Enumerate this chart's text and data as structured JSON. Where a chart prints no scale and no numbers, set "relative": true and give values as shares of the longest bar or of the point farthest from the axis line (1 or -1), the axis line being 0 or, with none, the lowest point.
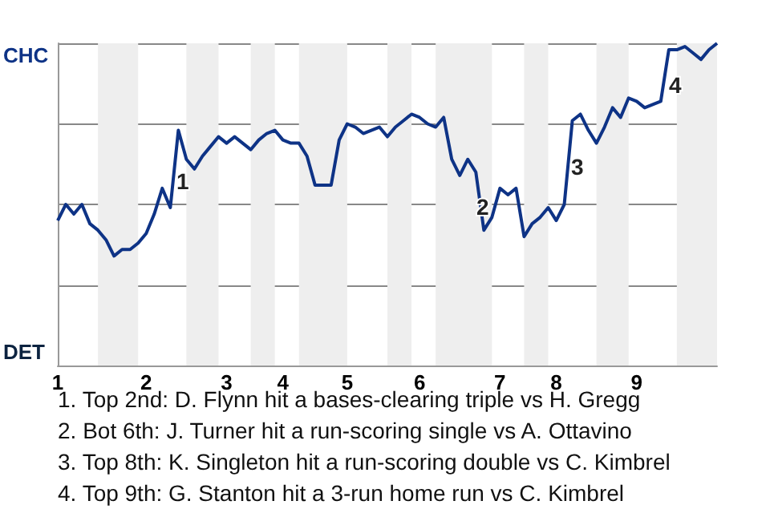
{
  "chart_data": {
    "type": "line",
    "relative": true,
    "categories": [
      "1",
      null,
      null,
      null,
      null,
      null,
      null,
      null,
      null,
      null,
      null,
      "2",
      null,
      null,
      null,
      null,
      null,
      null,
      null,
      null,
      null,
      "3",
      null,
      null,
      null,
      null,
      null,
      null,
      "4",
      null,
      null,
      null,
      null,
      null,
      null,
      null,
      "5",
      null,
      null,
      null,
      null,
      null,
      null,
      null,
      null,
      "6",
      null,
      null,
      null,
      null,
      null,
      null,
      null,
      null,
      null,
      "7",
      null,
      null,
      null,
      null,
      null,
      null,
      "8",
      null,
      null,
      null,
      null,
      null,
      null,
      null,
      null,
      null,
      "9",
      null,
      null,
      null,
      null,
      null,
      null,
      null,
      null,
      null,
      null
    ],
    "series": [
      {
        "color": "#0e3386",
        "values": [
          0.45,
          0.5,
          0.47,
          0.5,
          0.44,
          0.42,
          0.39,
          0.34,
          0.36,
          0.36,
          0.38,
          0.41,
          0.47,
          0.55,
          0.49,
          0.73,
          0.64,
          0.61,
          0.65,
          0.68,
          0.71,
          0.69,
          0.71,
          0.69,
          0.67,
          0.7,
          0.72,
          0.73,
          0.7,
          0.69,
          0.69,
          0.65,
          0.56,
          0.56,
          0.56,
          0.7,
          0.75,
          0.74,
          0.72,
          0.73,
          0.74,
          0.71,
          0.74,
          0.76,
          0.78,
          0.77,
          0.75,
          0.74,
          0.77,
          0.64,
          0.59,
          0.64,
          0.6,
          0.42,
          0.46,
          0.55,
          0.53,
          0.55,
          0.4,
          0.44,
          0.46,
          0.49,
          0.45,
          0.5,
          0.76,
          0.78,
          0.73,
          0.69,
          0.74,
          0.8,
          0.77,
          0.83,
          0.82,
          0.8,
          0.81,
          0.82,
          0.98,
          0.98,
          0.99,
          0.97,
          0.95,
          0.98,
          1
        ]
      }
    ],
    "grid": "y",
    "marker": "none",
    "line_style": "solid",
    "annotations": [
      "CHC",
      "DET",
      "1",
      "2",
      "3",
      "4",
      "1. Top 2nd: D. Flynn hit a bases-clearing triple vs H. Gregg",
      "2. Bot 6th: J. Turner hit a run-scoring single vs A. Ottavino",
      "3. Top 8th: K. Singleton hit a run-scoring double vs C. Kimbrel",
      "4. Top 9th: G. Stanton hit a 3-run home run vs C. Kimbrel"
    ]
  }
}
